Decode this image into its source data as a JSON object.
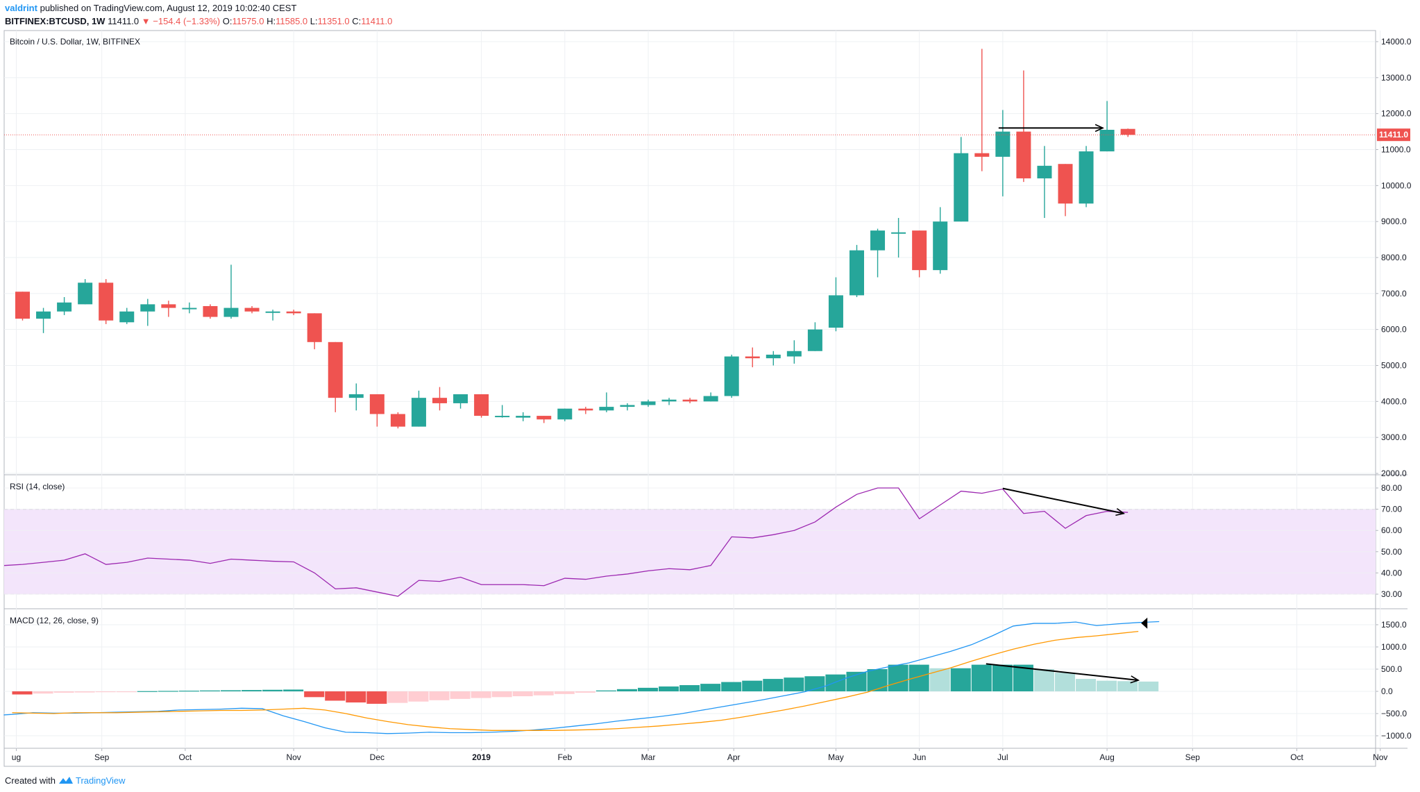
{
  "header": {
    "author": "valdrint",
    "published_text": "published on TradingView.com, August 12, 2019 10:02:40 CEST",
    "symbol": "BITFINEX:BTCUSD, 1W",
    "last": "11411.0",
    "change": "▼ −154.4 (−1.33%)",
    "open_label": "O:",
    "open": "11575.0",
    "high_label": "H:",
    "high": "11585.0",
    "low_label": "L:",
    "low": "11351.0",
    "close_label": "C:",
    "close": "11411.0"
  },
  "footer": {
    "created_with": "Created with",
    "brand": "TradingView",
    "logo_icon": "tradingview-logo-icon"
  },
  "colors": {
    "up": "#26a69a",
    "down": "#ef5350",
    "hist_up_strong": "#26a69a",
    "hist_up_weak": "#b2dfdb",
    "hist_down_strong": "#ef5350",
    "hist_down_weak": "#ffcdd2",
    "rsi_line": "#9c27b0",
    "rsi_band": "#f3e5fb",
    "macd_line": "#2196f3",
    "signal_line": "#ff9800",
    "last_price": "#ef5350",
    "grid": "#eef0f3"
  },
  "chart_data": [
    {
      "type": "candlestick",
      "title": "Bitcoin / U.S. Dollar, 1W, BITFINEX",
      "last_price_label": "11411.0",
      "last_price": 11411,
      "ylim": [
        2000,
        14000
      ],
      "yticks": [
        "14000.0",
        "13000.0",
        "12000.0",
        "11000.0",
        "10000.0",
        "9000.0",
        "8000.0",
        "7000.0",
        "6000.0",
        "5000.0",
        "4000.0",
        "3000.0",
        "2000.0"
      ],
      "x_labels": [
        {
          "label": "ug",
          "index": -0.3
        },
        {
          "label": "Sep",
          "index": 3.8
        },
        {
          "label": "Oct",
          "index": 7.8
        },
        {
          "label": "Nov",
          "index": 13
        },
        {
          "label": "Dec",
          "index": 17
        },
        {
          "label": "2019",
          "index": 22
        },
        {
          "label": "Feb",
          "index": 26
        },
        {
          "label": "Mar",
          "index": 30
        },
        {
          "label": "Apr",
          "index": 34.1
        },
        {
          "label": "May",
          "index": 39
        },
        {
          "label": "Jun",
          "index": 43
        },
        {
          "label": "Jul",
          "index": 47
        },
        {
          "label": "Aug",
          "index": 52
        },
        {
          "label": "Sep",
          "index": 56.1
        },
        {
          "label": "Oct",
          "index": 61.1
        },
        {
          "label": "Nov",
          "index": 65.1
        }
      ],
      "candles": [
        {
          "o": 7050,
          "h": 7050,
          "l": 6250,
          "c": 6300
        },
        {
          "o": 6300,
          "h": 6600,
          "l": 5900,
          "c": 6500
        },
        {
          "o": 6500,
          "h": 6900,
          "l": 6400,
          "c": 6750
        },
        {
          "o": 6700,
          "h": 7400,
          "l": 6700,
          "c": 7300
        },
        {
          "o": 7300,
          "h": 7400,
          "l": 6150,
          "c": 6250
        },
        {
          "o": 6200,
          "h": 6600,
          "l": 6150,
          "c": 6500
        },
        {
          "o": 6500,
          "h": 6850,
          "l": 6100,
          "c": 6700
        },
        {
          "o": 6700,
          "h": 6800,
          "l": 6350,
          "c": 6600
        },
        {
          "o": 6600,
          "h": 6750,
          "l": 6450,
          "c": 6600
        },
        {
          "o": 6650,
          "h": 6700,
          "l": 6300,
          "c": 6350
        },
        {
          "o": 6350,
          "h": 7800,
          "l": 6300,
          "c": 6600
        },
        {
          "o": 6600,
          "h": 6650,
          "l": 6450,
          "c": 6500
        },
        {
          "o": 6500,
          "h": 6550,
          "l": 6250,
          "c": 6500
        },
        {
          "o": 6500,
          "h": 6550,
          "l": 6400,
          "c": 6450
        },
        {
          "o": 6450,
          "h": 6450,
          "l": 5450,
          "c": 5650
        },
        {
          "o": 5650,
          "h": 5650,
          "l": 3700,
          "c": 4100
        },
        {
          "o": 4100,
          "h": 4500,
          "l": 3750,
          "c": 4200
        },
        {
          "o": 4200,
          "h": 4200,
          "l": 3300,
          "c": 3650
        },
        {
          "o": 3650,
          "h": 3700,
          "l": 3250,
          "c": 3300
        },
        {
          "o": 3300,
          "h": 4300,
          "l": 3300,
          "c": 4100
        },
        {
          "o": 4100,
          "h": 4400,
          "l": 3750,
          "c": 3950
        },
        {
          "o": 3950,
          "h": 4200,
          "l": 3800,
          "c": 4200
        },
        {
          "o": 4200,
          "h": 4200,
          "l": 3550,
          "c": 3600
        },
        {
          "o": 3600,
          "h": 3900,
          "l": 3550,
          "c": 3600
        },
        {
          "o": 3550,
          "h": 3700,
          "l": 3450,
          "c": 3600
        },
        {
          "o": 3600,
          "h": 3600,
          "l": 3400,
          "c": 3500
        },
        {
          "o": 3500,
          "h": 3800,
          "l": 3450,
          "c": 3800
        },
        {
          "o": 3800,
          "h": 3850,
          "l": 3650,
          "c": 3750
        },
        {
          "o": 3750,
          "h": 4250,
          "l": 3700,
          "c": 3850
        },
        {
          "o": 3850,
          "h": 3950,
          "l": 3750,
          "c": 3900
        },
        {
          "o": 3900,
          "h": 4050,
          "l": 3850,
          "c": 4000
        },
        {
          "o": 4000,
          "h": 4100,
          "l": 3900,
          "c": 4050
        },
        {
          "o": 4050,
          "h": 4100,
          "l": 3950,
          "c": 4000
        },
        {
          "o": 4000,
          "h": 4250,
          "l": 4000,
          "c": 4150
        },
        {
          "o": 4150,
          "h": 5300,
          "l": 4100,
          "c": 5250
        },
        {
          "o": 5250,
          "h": 5500,
          "l": 4950,
          "c": 5200
        },
        {
          "o": 5200,
          "h": 5400,
          "l": 5000,
          "c": 5300
        },
        {
          "o": 5250,
          "h": 5700,
          "l": 5050,
          "c": 5400
        },
        {
          "o": 5400,
          "h": 6200,
          "l": 5400,
          "c": 6000
        },
        {
          "o": 6050,
          "h": 7450,
          "l": 5950,
          "c": 6950
        },
        {
          "o": 6950,
          "h": 8350,
          "l": 6900,
          "c": 8200
        },
        {
          "o": 8200,
          "h": 8800,
          "l": 7450,
          "c": 8750
        },
        {
          "o": 8700,
          "h": 9100,
          "l": 8000,
          "c": 8700
        },
        {
          "o": 8750,
          "h": 8750,
          "l": 7450,
          "c": 7650
        },
        {
          "o": 7650,
          "h": 9400,
          "l": 7550,
          "c": 9000
        },
        {
          "o": 9000,
          "h": 11350,
          "l": 9000,
          "c": 10900
        },
        {
          "o": 10900,
          "h": 13800,
          "l": 10400,
          "c": 10800
        },
        {
          "o": 10800,
          "h": 12100,
          "l": 9700,
          "c": 11500
        },
        {
          "o": 11500,
          "h": 13200,
          "l": 10100,
          "c": 10200
        },
        {
          "o": 10200,
          "h": 11100,
          "l": 9100,
          "c": 10550
        },
        {
          "o": 10600,
          "h": 10600,
          "l": 9150,
          "c": 9500
        },
        {
          "o": 9500,
          "h": 11100,
          "l": 9400,
          "c": 10950
        },
        {
          "o": 10950,
          "h": 12350,
          "l": 10950,
          "c": 11550
        },
        {
          "o": 11575,
          "h": 11585,
          "l": 11351,
          "c": 11411
        }
      ],
      "annotations": [
        {
          "type": "arrow",
          "from": {
            "index": 46.8,
            "value": 11600
          },
          "to": {
            "index": 51.8,
            "value": 11600
          }
        }
      ]
    },
    {
      "type": "line",
      "title": "RSI (14, close)",
      "ylim": [
        25,
        85
      ],
      "yticks": [
        "80.00",
        "70.00",
        "60.00",
        "50.00",
        "40.00",
        "30.00"
      ],
      "band": [
        30,
        70
      ],
      "values": [
        44,
        45,
        46,
        49,
        44,
        45,
        47,
        46.5,
        46,
        44.5,
        46.5,
        46,
        45.5,
        45.2,
        40,
        32.5,
        33,
        31,
        29,
        36.5,
        36,
        38,
        34.5,
        34.5,
        34.5,
        34,
        37.5,
        37,
        38.5,
        39.5,
        41,
        42,
        41.5,
        43.5,
        57,
        56.5,
        58,
        60,
        64,
        71,
        77,
        80,
        80,
        65.5,
        72,
        78.5,
        77.5,
        79.5,
        68,
        69,
        61,
        67,
        69,
        68.5
      ],
      "annotations": [
        {
          "type": "arrow",
          "from": {
            "index": 47,
            "value": 79.8
          },
          "to": {
            "index": 52.8,
            "value": 68
          }
        }
      ]
    },
    {
      "type": "histogram+line",
      "title": "MACD (12, 26, close, 9)",
      "ylim": [
        -1150,
        1700
      ],
      "yticks": [
        "1500.0",
        "1000.0",
        "500.0",
        "0.0",
        "−500.0",
        "−1000.0"
      ],
      "histogram": [
        -70,
        -50,
        -30,
        -25,
        -10,
        -5,
        5,
        10,
        15,
        20,
        25,
        30,
        35,
        40,
        -130,
        -210,
        -250,
        -280,
        -260,
        -230,
        -200,
        -170,
        -150,
        -130,
        -110,
        -90,
        -60,
        -30,
        20,
        50,
        80,
        110,
        140,
        170,
        210,
        240,
        280,
        310,
        340,
        380,
        440,
        500,
        600,
        600,
        520,
        520,
        600,
        600,
        600,
        500,
        420,
        280,
        240,
        230,
        220
      ],
      "macd_line": [
        -520,
        -530,
        -520,
        -480,
        -490,
        -490,
        -480,
        -470,
        -460,
        -450,
        -420,
        -410,
        -400,
        -380,
        -390,
        -550,
        -680,
        -820,
        -920,
        -930,
        -950,
        -940,
        -920,
        -930,
        -930,
        -920,
        -900,
        -870,
        -830,
        -780,
        -730,
        -670,
        -620,
        -570,
        -510,
        -430,
        -350,
        -270,
        -190,
        -100,
        -10,
        120,
        300,
        450,
        550,
        640,
        770,
        900,
        1050,
        1250,
        1470,
        1530,
        1530,
        1560,
        1480,
        1520,
        1550,
        1570
      ],
      "signal_line": [
        -480,
        -490,
        -500,
        -480,
        -480,
        -480,
        -470,
        -460,
        -450,
        -440,
        -430,
        -430,
        -420,
        -400,
        -380,
        -420,
        -500,
        -600,
        -680,
        -750,
        -800,
        -840,
        -860,
        -880,
        -880,
        -880,
        -880,
        -870,
        -860,
        -840,
        -810,
        -780,
        -740,
        -700,
        -650,
        -580,
        -500,
        -420,
        -330,
        -230,
        -130,
        -20,
        130,
        270,
        400,
        530,
        680,
        820,
        950,
        1060,
        1150,
        1210,
        1250,
        1300,
        1350
      ],
      "annotations": [
        {
          "type": "arrow",
          "from": {
            "index": 46.2,
            "value": 620
          },
          "to": {
            "index": 53.5,
            "value": 250
          }
        },
        {
          "type": "marker",
          "index": 53.5,
          "value": 1550
        }
      ]
    }
  ]
}
